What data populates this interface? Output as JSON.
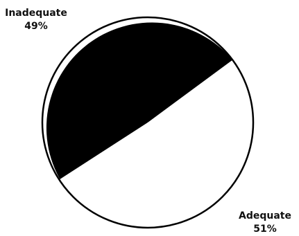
{
  "chart_data": {
    "type": "pie",
    "title": "",
    "slices": [
      {
        "label": "Inadequate",
        "value": 49,
        "value_label": "49%",
        "color": "#000000"
      },
      {
        "label": "Adequate",
        "value": 51,
        "value_label": "51%",
        "color": "#ffffff"
      }
    ],
    "outline_color": "#000000",
    "legend": "none"
  }
}
